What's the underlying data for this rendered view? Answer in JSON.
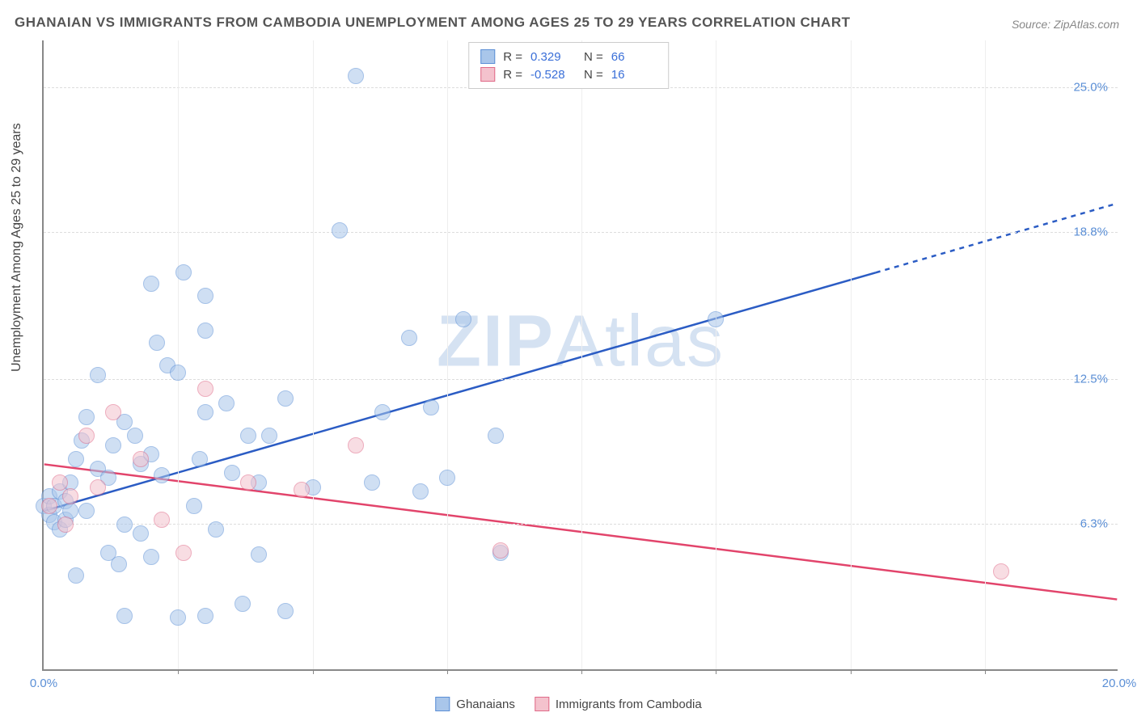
{
  "title": "GHANAIAN VS IMMIGRANTS FROM CAMBODIA UNEMPLOYMENT AMONG AGES 25 TO 29 YEARS CORRELATION CHART",
  "source": "Source: ZipAtlas.com",
  "ylabel": "Unemployment Among Ages 25 to 29 years",
  "watermark_a": "ZIP",
  "watermark_b": "Atlas",
  "chart": {
    "type": "scatter",
    "background_color": "#ffffff",
    "grid_color": "#dddddd",
    "axis_color": "#888888",
    "xlim": [
      0,
      20
    ],
    "ylim": [
      0,
      27
    ],
    "y_ticks": [
      {
        "v": 6.3,
        "label": "6.3%"
      },
      {
        "v": 12.5,
        "label": "12.5%"
      },
      {
        "v": 18.8,
        "label": "18.8%"
      },
      {
        "v": 25.0,
        "label": "25.0%"
      }
    ],
    "x_ticks": [
      {
        "v": 0.0,
        "label": "0.0%"
      },
      {
        "v": 20.0,
        "label": "20.0%"
      }
    ],
    "x_minor_ticks": [
      2.5,
      5.0,
      7.5,
      10.0,
      12.5,
      15.0,
      17.5
    ],
    "tick_label_color": "#5b8fd6",
    "marker_radius": 10,
    "marker_opacity": 0.55,
    "series": [
      {
        "name": "Ghanaians",
        "fill": "#a9c6ea",
        "stroke": "#5b8fd6",
        "trend_stroke": "#2b5cc4",
        "trend_width": 2.5,
        "trend_y_at_x0": 6.8,
        "trend_y_at_x20": 20.0,
        "trend_solid_until_x": 15.5,
        "R": "0.329",
        "N": "66",
        "points": [
          [
            0.0,
            7.0
          ],
          [
            0.1,
            6.6
          ],
          [
            0.1,
            7.4
          ],
          [
            0.2,
            7.0
          ],
          [
            0.2,
            6.3
          ],
          [
            0.3,
            6.0
          ],
          [
            0.3,
            7.6
          ],
          [
            0.4,
            6.4
          ],
          [
            0.4,
            7.2
          ],
          [
            0.6,
            4.0
          ],
          [
            0.5,
            6.8
          ],
          [
            0.5,
            8.0
          ],
          [
            0.6,
            9.0
          ],
          [
            0.7,
            9.8
          ],
          [
            0.8,
            10.8
          ],
          [
            0.8,
            6.8
          ],
          [
            1.0,
            12.6
          ],
          [
            1.0,
            8.6
          ],
          [
            1.2,
            5.0
          ],
          [
            1.2,
            8.2
          ],
          [
            1.3,
            9.6
          ],
          [
            1.4,
            4.5
          ],
          [
            1.5,
            2.3
          ],
          [
            1.5,
            10.6
          ],
          [
            1.5,
            6.2
          ],
          [
            1.7,
            10.0
          ],
          [
            1.8,
            8.8
          ],
          [
            1.8,
            5.8
          ],
          [
            2.0,
            9.2
          ],
          [
            2.0,
            4.8
          ],
          [
            2.0,
            16.5
          ],
          [
            2.1,
            14.0
          ],
          [
            2.2,
            8.3
          ],
          [
            2.3,
            13.0
          ],
          [
            2.5,
            12.7
          ],
          [
            2.5,
            2.2
          ],
          [
            2.6,
            17.0
          ],
          [
            2.8,
            7.0
          ],
          [
            2.9,
            9.0
          ],
          [
            3.0,
            2.3
          ],
          [
            3.0,
            11.0
          ],
          [
            3.0,
            14.5
          ],
          [
            3.0,
            16.0
          ],
          [
            3.2,
            6.0
          ],
          [
            3.4,
            11.4
          ],
          [
            3.5,
            8.4
          ],
          [
            3.7,
            2.8
          ],
          [
            3.8,
            10.0
          ],
          [
            4.0,
            4.9
          ],
          [
            4.0,
            8.0
          ],
          [
            4.2,
            10.0
          ],
          [
            4.5,
            2.5
          ],
          [
            4.5,
            11.6
          ],
          [
            5.0,
            7.8
          ],
          [
            5.5,
            18.8
          ],
          [
            5.8,
            25.4
          ],
          [
            6.1,
            8.0
          ],
          [
            6.3,
            11.0
          ],
          [
            6.8,
            14.2
          ],
          [
            7.0,
            7.6
          ],
          [
            7.2,
            11.2
          ],
          [
            7.5,
            8.2
          ],
          [
            7.8,
            15.0
          ],
          [
            8.4,
            10.0
          ],
          [
            8.5,
            5.0
          ],
          [
            12.5,
            15.0
          ]
        ]
      },
      {
        "name": "Immigrants from Cambodia",
        "fill": "#f4c2cd",
        "stroke": "#e06a88",
        "trend_stroke": "#e2446b",
        "trend_width": 2.5,
        "trend_y_at_x0": 8.8,
        "trend_y_at_x20": 3.0,
        "trend_solid_until_x": 20,
        "R": "-0.528",
        "N": "16",
        "points": [
          [
            0.1,
            7.0
          ],
          [
            0.3,
            8.0
          ],
          [
            0.4,
            6.2
          ],
          [
            0.5,
            7.4
          ],
          [
            0.8,
            10.0
          ],
          [
            1.0,
            7.8
          ],
          [
            1.3,
            11.0
          ],
          [
            1.8,
            9.0
          ],
          [
            2.2,
            6.4
          ],
          [
            2.6,
            5.0
          ],
          [
            3.0,
            12.0
          ],
          [
            3.8,
            8.0
          ],
          [
            4.8,
            7.7
          ],
          [
            5.8,
            9.6
          ],
          [
            8.5,
            5.1
          ],
          [
            17.8,
            4.2
          ]
        ]
      }
    ]
  },
  "legend_top": {
    "r_label": "R = ",
    "n_label": "N = "
  },
  "legend_bottom": [
    "Ghanaians",
    "Immigrants from Cambodia"
  ]
}
